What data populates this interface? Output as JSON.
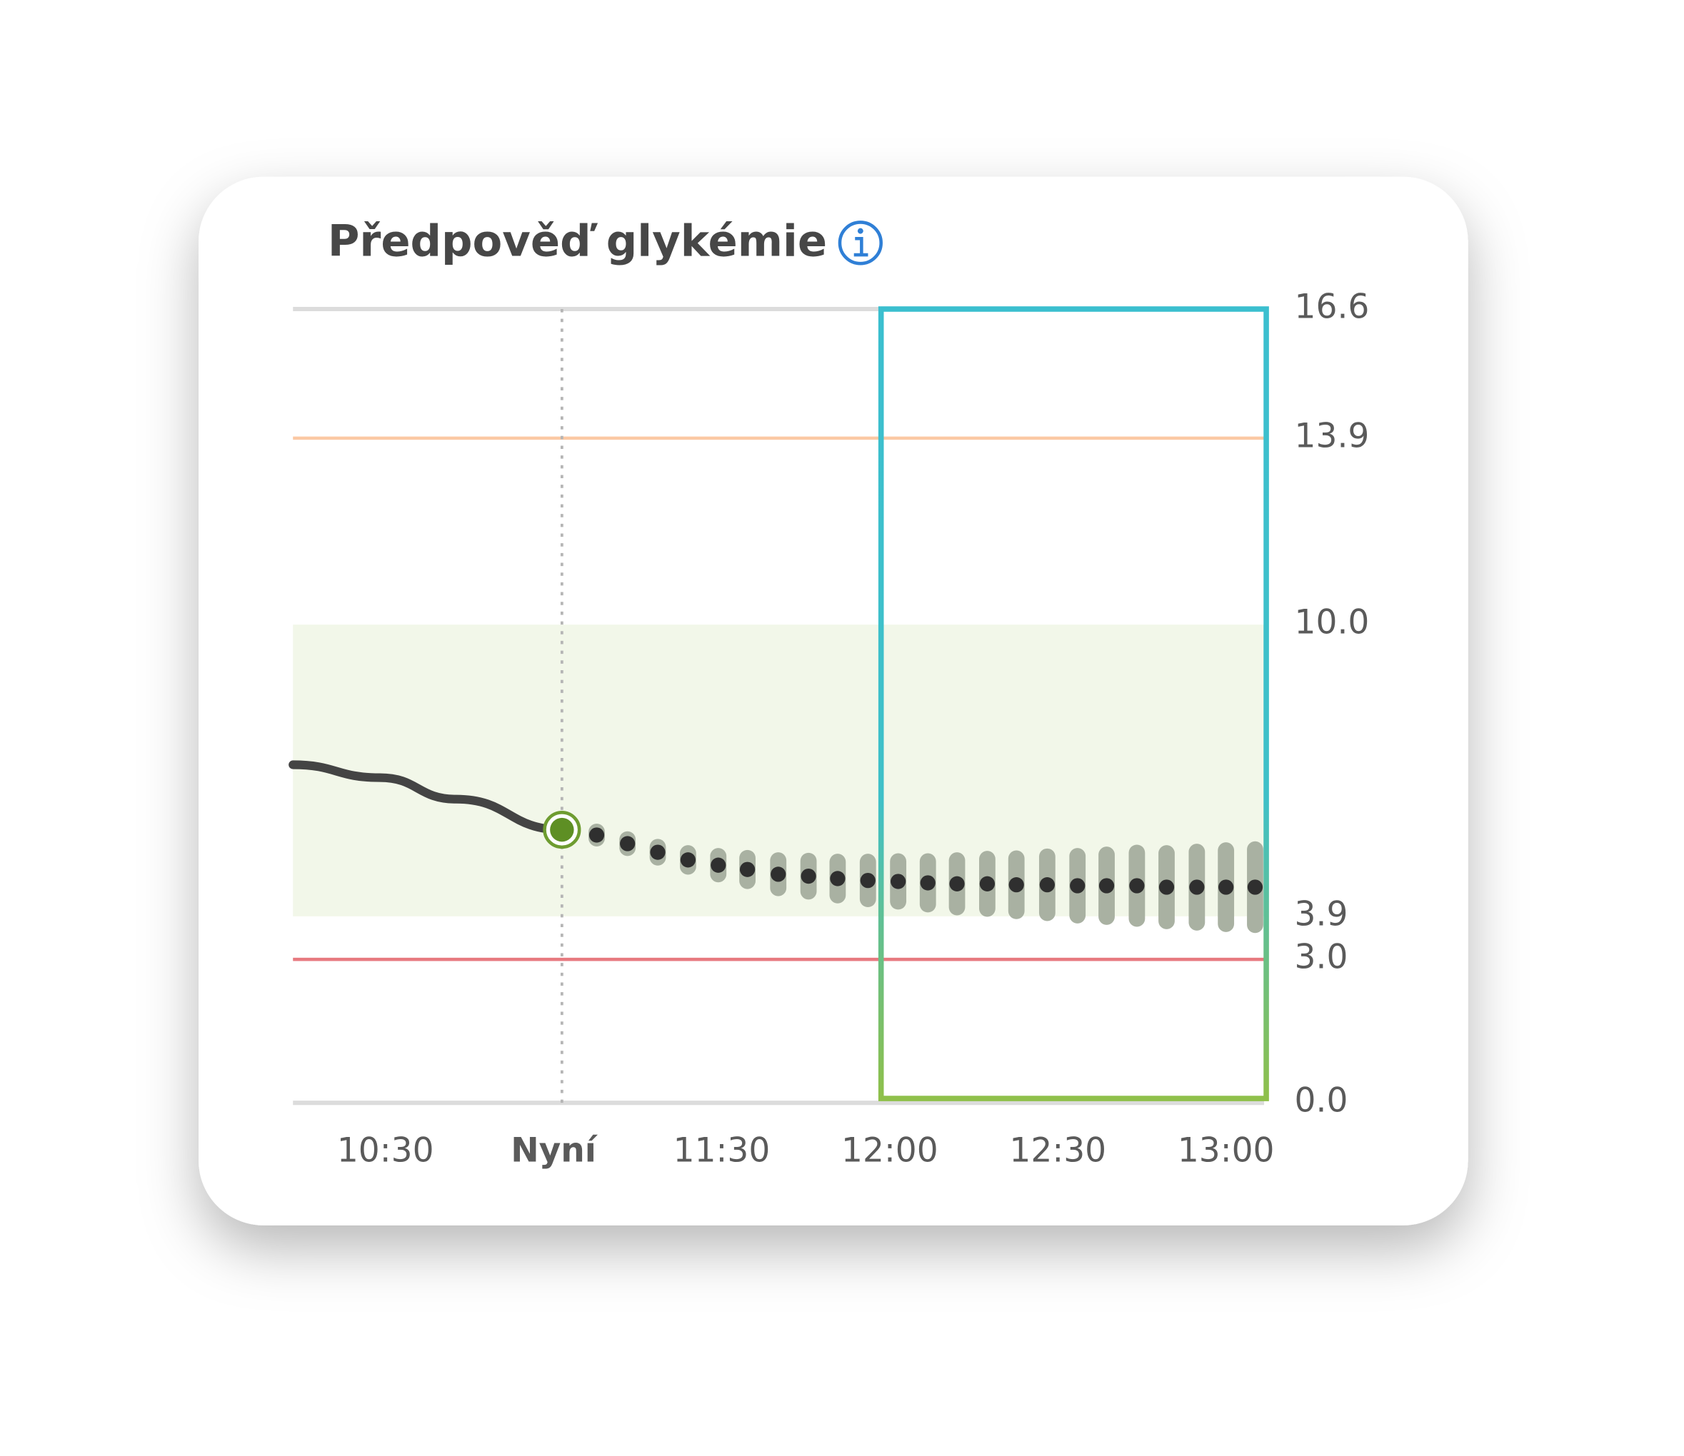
{
  "chart_data": {
    "type": "line",
    "title": "Předpověď glykémie",
    "xlim": [
      613.5,
      786.8
    ],
    "xticks": [
      {
        "value": 630,
        "label": "10:30"
      },
      {
        "value": 660,
        "label": "Nyní"
      },
      {
        "value": 690,
        "label": "11:30"
      },
      {
        "value": 720,
        "label": "12:00"
      },
      {
        "value": 750,
        "label": "12:30"
      },
      {
        "value": 780,
        "label": "13:00"
      }
    ],
    "ylim": [
      0,
      16.6
    ],
    "yticks": [
      {
        "value": 0,
        "label": "0.0"
      },
      {
        "value": 3,
        "label": "3.0"
      },
      3.9,
      {
        "value": 10,
        "label": "10.0"
      },
      13.9,
      16.6
    ],
    "target_range": [
      3.9,
      10
    ],
    "high_line": 13.9,
    "low_line": 3,
    "history": {
      "color": "#444444",
      "x": [
        613.5,
        629,
        642.6,
        661.5
      ],
      "values": [
        7.07,
        6.8,
        6.35,
        5.71
      ]
    },
    "forecast": {
      "color": "#2f2f2f",
      "error_color": "#a9b1a2",
      "x": [
        667.7,
        673.2,
        678.6,
        684.0,
        689.4,
        694.6,
        700.1,
        705.5,
        710.7,
        716.1,
        721.5,
        726.8,
        732.0,
        737.4,
        742.6,
        748.1,
        753.5,
        758.7,
        764.1,
        769.4,
        774.8,
        780.0,
        785.2
      ],
      "values": [
        5.6,
        5.42,
        5.24,
        5.08,
        4.97,
        4.88,
        4.78,
        4.74,
        4.69,
        4.65,
        4.63,
        4.6,
        4.58,
        4.58,
        4.56,
        4.56,
        4.54,
        4.54,
        4.54,
        4.51,
        4.51,
        4.51,
        4.51
      ],
      "errors": [
        0.08,
        0.1,
        0.12,
        0.15,
        0.2,
        0.25,
        0.3,
        0.33,
        0.36,
        0.4,
        0.43,
        0.46,
        0.5,
        0.53,
        0.56,
        0.6,
        0.63,
        0.66,
        0.7,
        0.72,
        0.75,
        0.78,
        0.8
      ]
    }
  }
}
